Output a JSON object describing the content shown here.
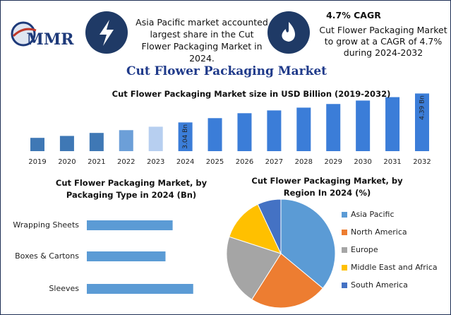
{
  "header": {
    "logo": "MMR",
    "info1": "Asia Pacific market accounted largest share in the Cut Flower Packaging Market in 2024.",
    "cagr": "4.7% CAGR",
    "info2": "Cut Flower Packaging Market to grow at a CAGR of 4.7% during 2024-2032"
  },
  "title": "Cut Flower Packaging Market",
  "chart_data": [
    {
      "type": "bar",
      "title": "Cut Flower Packaging Market size in USD Billion (2019-2032)",
      "categories": [
        "2019",
        "2020",
        "2021",
        "2022",
        "2023",
        "2024",
        "2025",
        "2026",
        "2027",
        "2028",
        "2029",
        "2030",
        "2031",
        "2032"
      ],
      "values": [
        2.32,
        2.41,
        2.55,
        2.68,
        2.84,
        3.04,
        3.24,
        3.47,
        3.6,
        3.73,
        3.9,
        4.06,
        4.22,
        4.39
      ],
      "value_labels": [
        null,
        null,
        null,
        null,
        null,
        "3.04 Bn",
        null,
        null,
        null,
        null,
        null,
        null,
        null,
        "4.39 Bn"
      ],
      "colors": [
        "#3f78b5",
        "#3f78b5",
        "#3f78b5",
        "#6c9fd8",
        "#b7cff0",
        "#3b7dd8",
        "#3b7dd8",
        "#3b7dd8",
        "#3b7dd8",
        "#3b7dd8",
        "#3b7dd8",
        "#3b7dd8",
        "#3b7dd8",
        "#3b7dd8"
      ],
      "ylim": [
        1.7,
        4.6
      ]
    },
    {
      "type": "hbar",
      "title": "Cut Flower Packaging Market, by Packaging Type in 2024 (Bn)",
      "categories": [
        "Wrapping Sheets",
        "Boxes & Cartons",
        "Sleeves"
      ],
      "values": [
        0.96,
        0.88,
        1.19
      ],
      "color": "#5b9bd5",
      "xlim": [
        0,
        1.5
      ]
    },
    {
      "type": "pie",
      "title": "Cut Flower Packaging Market, by Region In 2024 (%)",
      "categories": [
        "Asia Pacific",
        "North America",
        "Europe",
        "Middle East and Africa",
        "South America"
      ],
      "values": [
        36,
        23,
        21,
        13,
        7
      ],
      "colors": [
        "#5b9bd5",
        "#ed7d31",
        "#a5a5a5",
        "#ffc000",
        "#4472c4"
      ]
    }
  ]
}
